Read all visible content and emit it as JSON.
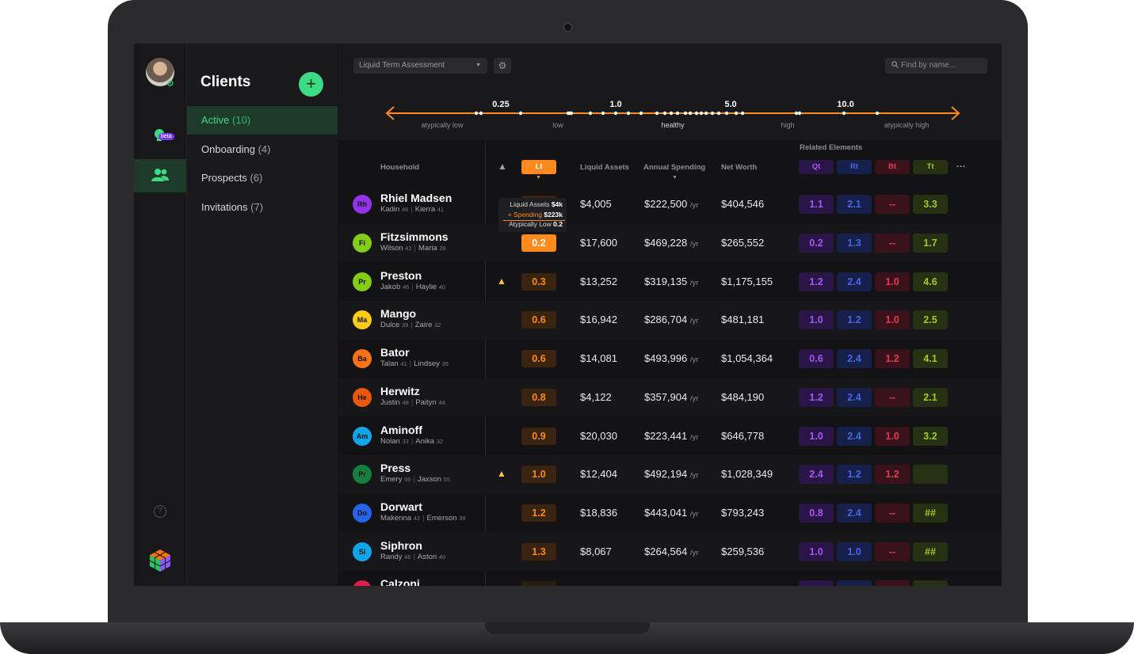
{
  "sidebar": {
    "beta_label": "beta",
    "help_label": "?"
  },
  "clients_panel": {
    "title": "Clients",
    "add_label": "+",
    "items": [
      {
        "label": "Active",
        "count": "(10)"
      },
      {
        "label": "Onboarding",
        "count": "(4)"
      },
      {
        "label": "Prospects",
        "count": "(6)"
      },
      {
        "label": "Invitations",
        "count": "(7)"
      }
    ]
  },
  "toolbar": {
    "assessment_select": "Liquid Term Assessment",
    "search_placeholder": "Find by name..."
  },
  "scale": {
    "ticks": [
      "0.25",
      "1.0",
      "5.0",
      "10.0"
    ],
    "zones": [
      "atypically low",
      "low",
      "healthy",
      "high",
      "atypically high"
    ]
  },
  "table": {
    "headers": {
      "household": "Household",
      "lt": "Lt",
      "liquid_assets": "Liquid Assets",
      "annual_spending": "Annual Spending",
      "net_worth": "Net Worth",
      "related": "Related Elements",
      "qt": "Qt",
      "rt": "Rt",
      "bt": "Bt",
      "tt": "Tt",
      "more": "···"
    },
    "yr_suffix": "/yr",
    "rows": [
      {
        "initials": "Rh",
        "name": "Rhiel Madsen",
        "m1": "Kadin",
        "a1": "46",
        "m2": "Kierra",
        "a2": "41",
        "warn": false,
        "lt": "",
        "liquid": "$4,005",
        "spending": "$222,500",
        "net": "$404,546",
        "qt": "1.1",
        "rt": "2.1",
        "bt": "--",
        "tt": "3.3"
      },
      {
        "initials": "Fi",
        "name": "Fitzsimmons",
        "m1": "Wilson",
        "a1": "42",
        "m2": "Maria",
        "a2": "39",
        "warn": false,
        "lt": "0.2",
        "liquid": "$17,600",
        "spending": "$469,228",
        "net": "$265,552",
        "qt": "0.2",
        "rt": "1.3",
        "bt": "--",
        "tt": "1.7"
      },
      {
        "initials": "Pr",
        "name": "Preston",
        "m1": "Jakob",
        "a1": "46",
        "m2": "Haylie",
        "a2": "40",
        "warn": true,
        "lt": "0.3",
        "liquid": "$13,252",
        "spending": "$319,135",
        "net": "$1,175,155",
        "qt": "1.2",
        "rt": "2.4",
        "bt": "1.0",
        "tt": "4.6"
      },
      {
        "initials": "Ma",
        "name": "Mango",
        "m1": "Dulce",
        "a1": "39",
        "m2": "Zaire",
        "a2": "32",
        "warn": false,
        "lt": "0.6",
        "liquid": "$16,942",
        "spending": "$286,704",
        "net": "$481,181",
        "qt": "1.0",
        "rt": "1.2",
        "bt": "1.0",
        "tt": "2.5"
      },
      {
        "initials": "Ba",
        "name": "Bator",
        "m1": "Talan",
        "a1": "41",
        "m2": "Lindsey",
        "a2": "39",
        "warn": false,
        "lt": "0.6",
        "liquid": "$14,081",
        "spending": "$493,996",
        "net": "$1,054,364",
        "qt": "0.6",
        "rt": "2.4",
        "bt": "1.2",
        "tt": "4.1"
      },
      {
        "initials": "He",
        "name": "Herwitz",
        "m1": "Justin",
        "a1": "48",
        "m2": "Paityn",
        "a2": "44",
        "warn": false,
        "lt": "0.8",
        "liquid": "$4,122",
        "spending": "$357,904",
        "net": "$484,190",
        "qt": "1.2",
        "rt": "2.4",
        "bt": "--",
        "tt": "2.1"
      },
      {
        "initials": "Am",
        "name": "Aminoff",
        "m1": "Nolan",
        "a1": "33",
        "m2": "Anika",
        "a2": "32",
        "warn": false,
        "lt": "0.9",
        "liquid": "$20,030",
        "spending": "$223,441",
        "net": "$646,778",
        "qt": "1.0",
        "rt": "2.4",
        "bt": "1.0",
        "tt": "3.2"
      },
      {
        "initials": "Pr",
        "name": "Press",
        "m1": "Emery",
        "a1": "56",
        "m2": "Jaxson",
        "a2": "55",
        "warn": true,
        "lt": "1.0",
        "liquid": "$12,404",
        "spending": "$492,194",
        "net": "$1,028,349",
        "qt": "2.4",
        "rt": "1.2",
        "bt": "1.2",
        "tt": ""
      },
      {
        "initials": "Do",
        "name": "Dorwart",
        "m1": "Makenna",
        "a1": "42",
        "m2": "Emerson",
        "a2": "39",
        "warn": false,
        "lt": "1.2",
        "liquid": "$18,836",
        "spending": "$443,041",
        "net": "$793,243",
        "qt": "0.8",
        "rt": "2.4",
        "bt": "--",
        "tt": "##"
      },
      {
        "initials": "Si",
        "name": "Siphron",
        "m1": "Randy",
        "a1": "46",
        "m2": "Aston",
        "a2": "40",
        "warn": false,
        "lt": "1.3",
        "liquid": "$8,067",
        "spending": "$264,564",
        "net": "$259,536",
        "qt": "1.0",
        "rt": "1.0",
        "bt": "--",
        "tt": "##"
      },
      {
        "initials": "Ca",
        "name": "Calzoni",
        "m1": "",
        "a1": "",
        "m2": "",
        "a2": "",
        "warn": false,
        "lt": "",
        "liquid": "",
        "spending": "",
        "net": "",
        "qt": "",
        "rt": "",
        "bt": "",
        "tt": ""
      }
    ]
  },
  "tooltip": {
    "l1_label": "Liquid Assets",
    "l1_value": "$4k",
    "l2_label": "+ Spending",
    "l2_value": "$223k",
    "l3_label": "Atypically Low",
    "l3_value": "0.2"
  },
  "colors": {
    "accent_green": "#3ddc84",
    "accent_orange": "#ff8a1f",
    "qt": "#a855f7",
    "rt": "#4468e8",
    "bt": "#e23a55",
    "tt": "#a3c92a",
    "avatars": [
      "#9333ea",
      "#84cc16",
      "#84cc16",
      "#facc15",
      "#f97316",
      "#ea580c",
      "#0ea5e9",
      "#15803d",
      "#2563eb",
      "#0ea5e9",
      "#e11d48"
    ]
  }
}
